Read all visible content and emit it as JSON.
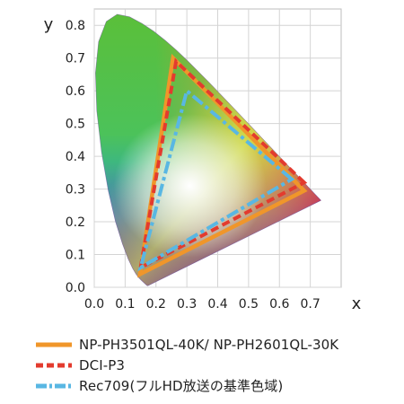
{
  "chart_data": {
    "type": "scatter",
    "xlabel": "x",
    "ylabel": "y",
    "xlim": [
      0.0,
      0.8
    ],
    "ylim": [
      0.0,
      0.85
    ],
    "x_ticks": [
      "0.0",
      "0.1",
      "0.2",
      "0.3",
      "0.4",
      "0.5",
      "0.6",
      "0.7"
    ],
    "y_ticks": [
      "0.0",
      "0.1",
      "0.2",
      "0.3",
      "0.4",
      "0.5",
      "0.6",
      "0.7",
      "0.8"
    ],
    "grid": true,
    "legend_position": "bottom",
    "spectral_locus": [
      [
        0.1741,
        0.005
      ],
      [
        0.1738,
        0.0049
      ],
      [
        0.1736,
        0.0049
      ],
      [
        0.1733,
        0.0048
      ],
      [
        0.173,
        0.0048
      ],
      [
        0.1726,
        0.0048
      ],
      [
        0.1721,
        0.0048
      ],
      [
        0.1714,
        0.0051
      ],
      [
        0.1703,
        0.0058
      ],
      [
        0.1689,
        0.0069
      ],
      [
        0.1669,
        0.0086
      ],
      [
        0.1644,
        0.0109
      ],
      [
        0.1611,
        0.0138
      ],
      [
        0.1566,
        0.0177
      ],
      [
        0.151,
        0.0227
      ],
      [
        0.144,
        0.0297
      ],
      [
        0.1355,
        0.0399
      ],
      [
        0.1241,
        0.0578
      ],
      [
        0.1096,
        0.0868
      ],
      [
        0.0913,
        0.1327
      ],
      [
        0.0687,
        0.2007
      ],
      [
        0.0454,
        0.295
      ],
      [
        0.0235,
        0.4127
      ],
      [
        0.0082,
        0.5384
      ],
      [
        0.0039,
        0.6548
      ],
      [
        0.0139,
        0.7502
      ],
      [
        0.0389,
        0.812
      ],
      [
        0.0743,
        0.8338
      ],
      [
        0.1142,
        0.8262
      ],
      [
        0.1547,
        0.8059
      ],
      [
        0.1929,
        0.7816
      ],
      [
        0.2296,
        0.7543
      ],
      [
        0.2658,
        0.7243
      ],
      [
        0.3016,
        0.6923
      ],
      [
        0.3373,
        0.6589
      ],
      [
        0.3731,
        0.6245
      ],
      [
        0.4087,
        0.5896
      ],
      [
        0.4441,
        0.5547
      ],
      [
        0.4788,
        0.5202
      ],
      [
        0.5125,
        0.4866
      ],
      [
        0.5448,
        0.4544
      ],
      [
        0.5752,
        0.4242
      ],
      [
        0.6029,
        0.3965
      ],
      [
        0.627,
        0.3725
      ],
      [
        0.6482,
        0.3514
      ],
      [
        0.6658,
        0.334
      ],
      [
        0.6801,
        0.3197
      ],
      [
        0.6915,
        0.3083
      ],
      [
        0.7006,
        0.2993
      ],
      [
        0.7079,
        0.292
      ],
      [
        0.714,
        0.2859
      ],
      [
        0.719,
        0.2809
      ],
      [
        0.723,
        0.277
      ],
      [
        0.726,
        0.274
      ],
      [
        0.7283,
        0.2717
      ],
      [
        0.73,
        0.27
      ],
      [
        0.7311,
        0.2689
      ],
      [
        0.732,
        0.268
      ],
      [
        0.7327,
        0.2673
      ],
      [
        0.7334,
        0.2666
      ],
      [
        0.734,
        0.266
      ],
      [
        0.7344,
        0.2656
      ],
      [
        0.7346,
        0.2654
      ],
      [
        0.7347,
        0.2653
      ]
    ],
    "series": [
      {
        "name": "NP-PH3501QL-40K/ NP-PH2601QL-30K",
        "color": "#F0962A",
        "style": "solid",
        "points": [
          [
            0.68,
            0.295
          ],
          [
            0.255,
            0.7
          ],
          [
            0.148,
            0.04
          ]
        ]
      },
      {
        "name": "DCI-P3",
        "color": "#E33B2E",
        "style": "dashed",
        "points": [
          [
            0.68,
            0.32
          ],
          [
            0.265,
            0.69
          ],
          [
            0.15,
            0.06
          ]
        ]
      },
      {
        "name": "Rec709(フルHD放送の基準色域)",
        "color": "#59B7E3",
        "style": "dash-dot",
        "points": [
          [
            0.64,
            0.33
          ],
          [
            0.3,
            0.6
          ],
          [
            0.15,
            0.06
          ]
        ]
      }
    ]
  }
}
